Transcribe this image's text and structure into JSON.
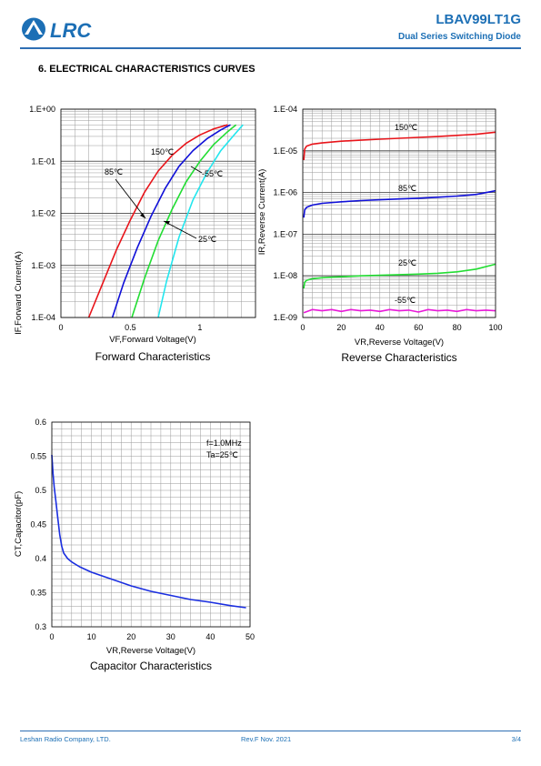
{
  "header": {
    "logo_text": "LRC",
    "part_number": "LBAV99LT1G",
    "subtitle": "Dual Series Switching Diode"
  },
  "section_title": "6. ELECTRICAL CHARACTERISTICS CURVES",
  "footer": {
    "company": "Leshan Radio Company, LTD.",
    "revision": "Rev.F   Nov.  2021",
    "page": "3/4"
  },
  "colors": {
    "brand": "#1c6fb5",
    "t150": "#e8141a",
    "t85": "#1010d8",
    "t25": "#22dd33",
    "tm55": "#22e6ee",
    "tm55_reverse": "#e81ad8",
    "cap": "#1a2ee0"
  },
  "chart_data": [
    {
      "id": "forward",
      "type": "line",
      "title": "Forward Characteristics",
      "xlabel": "VF,Forward Voltage(V)",
      "ylabel": "IF,Forward Current(A)",
      "xscale": "linear",
      "yscale": "log",
      "xlim": [
        0,
        1.4
      ],
      "ylim": [
        0.0001,
        1
      ],
      "xticks": [
        0,
        0.5,
        1
      ],
      "xtick_labels": [
        "0",
        "0.5",
        "1"
      ],
      "yticks": [
        0.0001,
        0.001,
        0.01,
        0.1,
        1
      ],
      "ytick_labels": [
        "1.E-04",
        "1.E-03",
        "1.E-02",
        "1.E-01",
        "1.E+00"
      ],
      "grid": true,
      "series": [
        {
          "name": "150℃",
          "color_key": "t150",
          "x": [
            0.2,
            0.3,
            0.4,
            0.5,
            0.6,
            0.7,
            0.8,
            0.9,
            1.0,
            1.1,
            1.2
          ],
          "y": [
            0.0001,
            0.00045,
            0.002,
            0.0075,
            0.025,
            0.065,
            0.13,
            0.22,
            0.32,
            0.42,
            0.5
          ]
        },
        {
          "name": "85℃",
          "color_key": "t85",
          "x": [
            0.37,
            0.45,
            0.55,
            0.65,
            0.75,
            0.85,
            0.95,
            1.05,
            1.15,
            1.22
          ],
          "y": [
            0.0001,
            0.00045,
            0.0022,
            0.009,
            0.03,
            0.08,
            0.16,
            0.27,
            0.4,
            0.5
          ]
        },
        {
          "name": "25℃",
          "color_key": "t25",
          "x": [
            0.51,
            0.6,
            0.7,
            0.8,
            0.9,
            1.0,
            1.1,
            1.2,
            1.26
          ],
          "y": [
            0.0001,
            0.00055,
            0.003,
            0.012,
            0.04,
            0.1,
            0.21,
            0.37,
            0.5
          ]
        },
        {
          "name": "-55℃",
          "color_key": "tm55",
          "x": [
            0.7,
            0.76,
            0.85,
            0.95,
            1.05,
            1.15,
            1.25,
            1.31
          ],
          "y": [
            0.0001,
            0.0005,
            0.0035,
            0.018,
            0.06,
            0.16,
            0.33,
            0.5
          ]
        }
      ],
      "annotations": [
        "150℃",
        "85℃",
        "-55℃",
        "25℃"
      ]
    },
    {
      "id": "reverse",
      "type": "line",
      "title": "Reverse Characteristics",
      "xlabel": "VR,Reverse Voltage(V)",
      "ylabel": "IR,Reverse Current(A)",
      "xscale": "linear",
      "yscale": "log",
      "xlim": [
        0,
        100
      ],
      "ylim": [
        1e-09,
        0.0001
      ],
      "xticks": [
        0,
        20,
        40,
        60,
        80,
        100
      ],
      "xtick_labels": [
        "0",
        "20",
        "40",
        "60",
        "80",
        "100"
      ],
      "yticks": [
        1e-09,
        1e-08,
        1e-07,
        1e-06,
        1e-05,
        0.0001
      ],
      "ytick_labels": [
        "1.E-09",
        "1.E-08",
        "1.E-07",
        "1.E-06",
        "1.E-05",
        "1.E-04"
      ],
      "grid": true,
      "series": [
        {
          "name": "150℃",
          "color_key": "t150",
          "x": [
            0.5,
            1,
            2,
            5,
            10,
            20,
            30,
            40,
            50,
            60,
            70,
            80,
            90,
            100
          ],
          "y": [
            6e-06,
            1.1e-05,
            1.3e-05,
            1.45e-05,
            1.55e-05,
            1.7e-05,
            1.8e-05,
            1.9e-05,
            2e-05,
            2.1e-05,
            2.2e-05,
            2.35e-05,
            2.5e-05,
            2.8e-05
          ]
        },
        {
          "name": "85℃",
          "color_key": "t85",
          "x": [
            0.5,
            1,
            2,
            5,
            10,
            20,
            30,
            40,
            50,
            60,
            70,
            80,
            90,
            100
          ],
          "y": [
            2.5e-07,
            3.8e-07,
            4.4e-07,
            5e-07,
            5.5e-07,
            6e-07,
            6.4e-07,
            6.7e-07,
            7e-07,
            7.3e-07,
            7.7e-07,
            8.2e-07,
            9e-07,
            1.1e-06
          ]
        },
        {
          "name": "25℃",
          "color_key": "t25",
          "x": [
            0.5,
            1,
            2,
            5,
            10,
            20,
            30,
            40,
            50,
            60,
            70,
            80,
            90,
            100
          ],
          "y": [
            5e-09,
            7e-09,
            7.8e-09,
            8.5e-09,
            9e-09,
            9.5e-09,
            1e-08,
            1.03e-08,
            1.07e-08,
            1.1e-08,
            1.15e-08,
            1.25e-08,
            1.45e-08,
            1.9e-08
          ]
        },
        {
          "name": "-55℃",
          "color_key": "tm55_reverse",
          "x": [
            0.5,
            5,
            10,
            15,
            20,
            25,
            30,
            35,
            40,
            45,
            50,
            55,
            60,
            65,
            70,
            75,
            80,
            85,
            90,
            95,
            100
          ],
          "y": [
            1.3e-09,
            1.55e-09,
            1.45e-09,
            1.55e-09,
            1.4e-09,
            1.55e-09,
            1.45e-09,
            1.5e-09,
            1.4e-09,
            1.55e-09,
            1.45e-09,
            1.5e-09,
            1.35e-09,
            1.55e-09,
            1.45e-09,
            1.5e-09,
            1.4e-09,
            1.55e-09,
            1.45e-09,
            1.5e-09,
            1.45e-09
          ]
        }
      ],
      "annotations": [
        "150℃",
        "85℃",
        "25℃",
        "-55℃"
      ]
    },
    {
      "id": "capacitance",
      "type": "line",
      "title": "Capacitor Characteristics",
      "xlabel": "VR,Reverse Voltage(V)",
      "ylabel": "CT,Capacitor(pF)",
      "xscale": "linear",
      "yscale": "linear",
      "xlim": [
        0,
        50
      ],
      "ylim": [
        0.3,
        0.6
      ],
      "xticks": [
        0,
        10,
        20,
        30,
        40,
        50
      ],
      "xtick_labels": [
        "0",
        "10",
        "20",
        "30",
        "40",
        "50"
      ],
      "yticks": [
        0.3,
        0.35,
        0.4,
        0.45,
        0.5,
        0.55,
        0.6
      ],
      "ytick_labels": [
        "0.3",
        "0.35",
        "0.4",
        "0.45",
        "0.5",
        "0.55",
        "0.6"
      ],
      "grid": true,
      "series": [
        {
          "color_key": "cap",
          "x": [
            0,
            0.3,
            0.6,
            1,
            1.5,
            2,
            2.5,
            3,
            4,
            5,
            7,
            10,
            15,
            20,
            25,
            30,
            35,
            40,
            45,
            49
          ],
          "y": [
            0.552,
            0.525,
            0.505,
            0.485,
            0.46,
            0.435,
            0.418,
            0.408,
            0.4,
            0.395,
            0.388,
            0.38,
            0.37,
            0.36,
            0.352,
            0.346,
            0.34,
            0.336,
            0.331,
            0.328
          ]
        }
      ],
      "annotations": [
        "f=1.0MHz",
        "Ta=25℃"
      ]
    }
  ]
}
